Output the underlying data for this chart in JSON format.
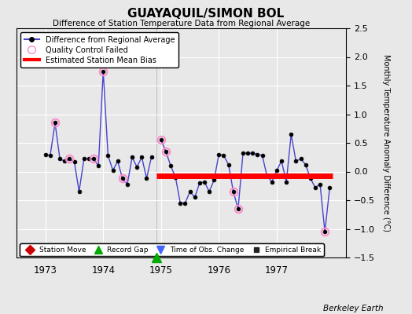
{
  "title": "GUAYAQUIL/SIMON BOL",
  "subtitle": "Difference of Station Temperature Data from Regional Average",
  "ylabel": "Monthly Temperature Anomaly Difference (°C)",
  "ylim": [
    -1.5,
    2.5
  ],
  "xlim": [
    1972.5,
    1978.2
  ],
  "xticks": [
    1973,
    1974,
    1975,
    1976,
    1977
  ],
  "yticks": [
    -1.5,
    -1.0,
    -0.5,
    0.0,
    0.5,
    1.0,
    1.5,
    2.0,
    2.5
  ],
  "bias_line_y": -0.08,
  "bias_line_start": 1974.92,
  "bias_line_end": 1977.97,
  "record_gap_x": 1974.92,
  "segment1_x": [
    1973.0,
    1973.083,
    1973.167,
    1973.25,
    1973.333,
    1973.417,
    1973.5,
    1973.583,
    1973.667,
    1973.75,
    1973.833,
    1973.917,
    1974.0,
    1974.083,
    1974.167,
    1974.25,
    1974.333,
    1974.417,
    1974.5,
    1974.583,
    1974.667,
    1974.75,
    1974.833
  ],
  "segment1_y": [
    0.3,
    0.28,
    0.85,
    0.22,
    0.18,
    0.22,
    0.17,
    -0.35,
    0.22,
    0.22,
    0.22,
    0.1,
    1.75,
    0.28,
    0.02,
    0.18,
    -0.12,
    -0.22,
    0.25,
    0.08,
    0.25,
    -0.12,
    0.25
  ],
  "segment2_x": [
    1975.0,
    1975.083,
    1975.167,
    1975.25,
    1975.333,
    1975.417,
    1975.5,
    1975.583,
    1975.667,
    1975.75,
    1975.833,
    1975.917,
    1976.0,
    1976.083,
    1976.167,
    1976.25,
    1976.333,
    1976.417,
    1976.5,
    1976.583,
    1976.667,
    1976.75,
    1976.833,
    1976.917,
    1977.0,
    1977.083,
    1977.167,
    1977.25,
    1977.333,
    1977.417,
    1977.5,
    1977.583,
    1977.667,
    1977.75,
    1977.833,
    1977.917
  ],
  "segment2_y": [
    0.55,
    0.35,
    0.1,
    -0.1,
    -0.55,
    -0.55,
    -0.35,
    -0.45,
    -0.2,
    -0.18,
    -0.35,
    -0.15,
    0.3,
    0.28,
    0.12,
    -0.35,
    -0.65,
    0.32,
    0.32,
    0.32,
    0.3,
    0.28,
    -0.08,
    -0.18,
    0.02,
    0.18,
    -0.18,
    0.65,
    0.18,
    0.22,
    0.12,
    -0.12,
    -0.28,
    -0.22,
    -1.05,
    -0.28
  ],
  "qc_failed": [
    [
      1973.167,
      0.85
    ],
    [
      1973.417,
      0.22
    ],
    [
      1973.833,
      0.22
    ],
    [
      1974.0,
      1.75
    ],
    [
      1974.333,
      -0.12
    ],
    [
      1975.0,
      0.55
    ],
    [
      1975.083,
      0.35
    ],
    [
      1976.25,
      -0.35
    ],
    [
      1976.333,
      -0.65
    ],
    [
      1977.833,
      -1.05
    ]
  ],
  "line_color": "#4444cc",
  "line_width": 1.0,
  "marker_size": 3.5,
  "marker_color": "black",
  "qc_color": "#ff88cc",
  "qc_marker_size": 7,
  "bias_color": "red",
  "bias_linewidth": 5,
  "background_color": "#e8e8e8",
  "plot_bg_color": "#e8e8e8",
  "grid_color": "white",
  "berkeley_earth_text": "Berkeley Earth",
  "legend_items": [
    {
      "label": "Difference from Regional Average",
      "color": "#4444cc"
    },
    {
      "label": "Quality Control Failed",
      "color": "#ff88cc"
    },
    {
      "label": "Estimated Station Mean Bias",
      "color": "red"
    }
  ],
  "bottom_legend": [
    {
      "label": "Station Move",
      "color": "#cc0000",
      "marker": "D"
    },
    {
      "label": "Record Gap",
      "color": "#00aa00",
      "marker": "^"
    },
    {
      "label": "Time of Obs. Change",
      "color": "#4466ff",
      "marker": "v"
    },
    {
      "label": "Empirical Break",
      "color": "#222222",
      "marker": "s"
    }
  ]
}
